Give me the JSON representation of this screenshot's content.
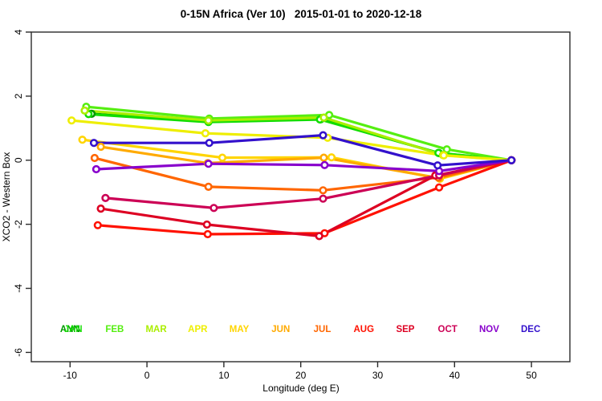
{
  "title": "0-15N Africa (Ver 10)   2015-01-01 to 2020-12-18",
  "chart_data": {
    "type": "line",
    "title": "0-15N Africa (Ver 10)   2015-01-01 to 2020-12-18",
    "xlabel": "Longitude (deg E)",
    "ylabel": "XCO2 - Western Box",
    "xlim": [
      -15.04,
      55.0
    ],
    "ylim": [
      -6.29,
      4.0
    ],
    "xticks": [
      -10,
      0,
      10,
      20,
      30,
      40,
      50
    ],
    "yticks": [
      -6,
      -4,
      -2,
      0,
      2,
      4
    ],
    "grid": false,
    "marker": "open-circle",
    "legend_position": "bottom-inside",
    "axis_color": "#2a2a2a",
    "series": [
      {
        "name": "ANN",
        "color": "#009900",
        "points": [
          [
            -7.2,
            1.45
          ],
          [
            8.0,
            1.2
          ],
          [
            22.6,
            1.28
          ],
          [
            38.0,
            0.22
          ],
          [
            47.4,
            0.0
          ]
        ]
      },
      {
        "name": "JAN",
        "color": "#11DD00",
        "points": [
          [
            -7.6,
            1.44
          ],
          [
            8.0,
            1.19
          ],
          [
            22.5,
            1.27
          ],
          [
            37.9,
            0.23
          ],
          [
            47.4,
            0.0
          ]
        ]
      },
      {
        "name": "FEB",
        "color": "#55EE11",
        "points": [
          [
            -7.9,
            1.67
          ],
          [
            8.1,
            1.3
          ],
          [
            23.7,
            1.41
          ],
          [
            39.0,
            0.34
          ],
          [
            47.4,
            0.0
          ]
        ]
      },
      {
        "name": "MAR",
        "color": "#AAEE00",
        "points": [
          [
            -8.1,
            1.55
          ],
          [
            8.0,
            1.24
          ],
          [
            23.0,
            1.33
          ],
          [
            38.5,
            0.16
          ],
          [
            47.4,
            0.0
          ]
        ]
      },
      {
        "name": "APR",
        "color": "#EEEE00",
        "points": [
          [
            -9.8,
            1.24
          ],
          [
            7.6,
            0.84
          ],
          [
            23.5,
            0.7
          ],
          [
            38.6,
            0.15
          ],
          [
            47.4,
            0.0
          ]
        ]
      },
      {
        "name": "MAY",
        "color": "#FFD500",
        "points": [
          [
            -8.4,
            0.64
          ],
          [
            9.8,
            0.08
          ],
          [
            24.0,
            0.09
          ],
          [
            38.1,
            -0.58
          ],
          [
            47.4,
            0.0
          ]
        ]
      },
      {
        "name": "JUN",
        "color": "#FFAA00",
        "points": [
          [
            -6.0,
            0.42
          ],
          [
            7.9,
            -0.09
          ],
          [
            23.0,
            0.08
          ],
          [
            38.0,
            -0.56
          ],
          [
            47.4,
            0.0
          ]
        ]
      },
      {
        "name": "JUL",
        "color": "#FF6600",
        "points": [
          [
            -6.8,
            0.07
          ],
          [
            8.0,
            -0.83
          ],
          [
            22.9,
            -0.94
          ],
          [
            37.9,
            -0.54
          ],
          [
            47.4,
            0.0
          ]
        ]
      },
      {
        "name": "AUG",
        "color": "#FF1100",
        "points": [
          [
            -6.4,
            -2.03
          ],
          [
            7.9,
            -2.31
          ],
          [
            23.1,
            -2.28
          ],
          [
            38.0,
            -0.85
          ],
          [
            47.4,
            0.0
          ]
        ]
      },
      {
        "name": "SEP",
        "color": "#DD0022",
        "points": [
          [
            -6.0,
            -1.51
          ],
          [
            7.8,
            -2.01
          ],
          [
            22.4,
            -2.37
          ],
          [
            37.5,
            -0.48
          ],
          [
            47.4,
            0.0
          ]
        ]
      },
      {
        "name": "OCT",
        "color": "#CC0055",
        "points": [
          [
            -5.4,
            -1.18
          ],
          [
            8.7,
            -1.49
          ],
          [
            22.9,
            -1.2
          ],
          [
            38.0,
            -0.47
          ],
          [
            47.4,
            0.0
          ]
        ]
      },
      {
        "name": "NOV",
        "color": "#8800CC",
        "points": [
          [
            -6.6,
            -0.28
          ],
          [
            8.0,
            -0.11
          ],
          [
            23.1,
            -0.15
          ],
          [
            38.0,
            -0.34
          ],
          [
            47.4,
            0.0
          ]
        ]
      },
      {
        "name": "DEC",
        "color": "#3311CC",
        "points": [
          [
            -6.9,
            0.54
          ],
          [
            8.1,
            0.54
          ],
          [
            22.9,
            0.78
          ],
          [
            37.8,
            -0.16
          ],
          [
            47.4,
            0.0
          ]
        ]
      }
    ],
    "legend": {
      "y_value": -5.26,
      "entries": [
        {
          "label": "ANN",
          "color": "#009900",
          "x": -10.0
        },
        {
          "label": "JAN",
          "color": "#11DD00",
          "x": -9.6
        },
        {
          "label": "FEB",
          "color": "#55EE11",
          "x": -4.2
        },
        {
          "label": "MAR",
          "color": "#AAEE00",
          "x": 1.2
        },
        {
          "label": "APR",
          "color": "#EEEE00",
          "x": 6.6
        },
        {
          "label": "MAY",
          "color": "#FFD500",
          "x": 12.0
        },
        {
          "label": "JUN",
          "color": "#FFAA00",
          "x": 17.4
        },
        {
          "label": "JUL",
          "color": "#FF6600",
          "x": 22.8
        },
        {
          "label": "AUG",
          "color": "#FF1100",
          "x": 28.2
        },
        {
          "label": "SEP",
          "color": "#DD0022",
          "x": 33.6
        },
        {
          "label": "OCT",
          "color": "#CC0055",
          "x": 39.1
        },
        {
          "label": "NOV",
          "color": "#8800CC",
          "x": 44.5
        },
        {
          "label": "DEC",
          "color": "#3311CC",
          "x": 49.9
        }
      ]
    }
  }
}
